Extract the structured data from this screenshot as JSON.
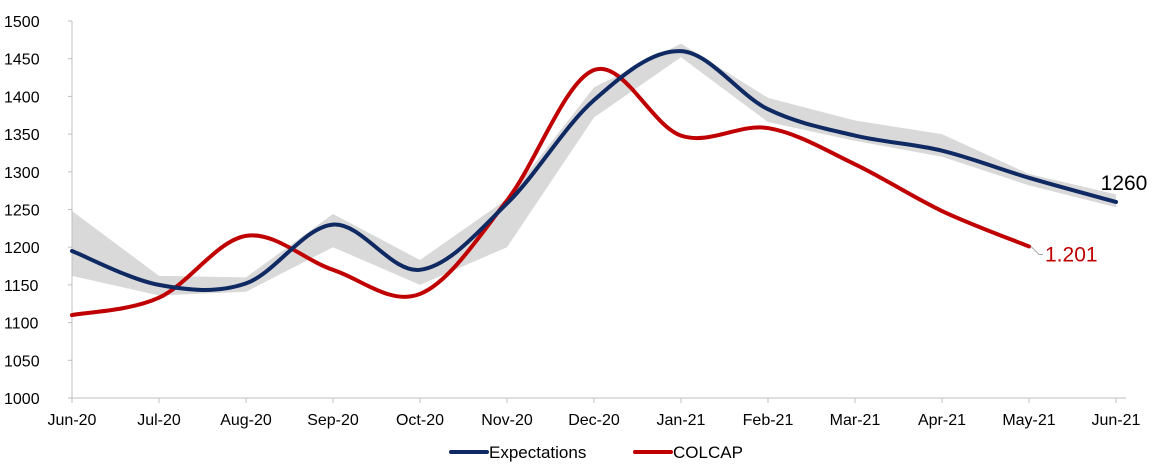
{
  "chart_data": {
    "type": "line",
    "title": "",
    "xlabel": "",
    "ylabel": "",
    "categories": [
      "Jun-20",
      "Jul-20",
      "Aug-20",
      "Sep-20",
      "Oct-20",
      "Nov-20",
      "Dec-20",
      "Jan-21",
      "Feb-21",
      "Mar-21",
      "Apr-21",
      "May-21",
      "Jun-21"
    ],
    "y_ticks": [
      "1000",
      "1050",
      "1100",
      "1150",
      "1200",
      "1250",
      "1300",
      "1350",
      "1400",
      "1450",
      "1500"
    ],
    "ylim": [
      1000,
      1500
    ],
    "grid": false,
    "legend_position": "bottom",
    "series": [
      {
        "name": "Expectations",
        "color": "#0f2a63",
        "values": [
          1195,
          1150,
          1152,
          1230,
          1170,
          1258,
          1395,
          1460,
          1383,
          1348,
          1328,
          1292,
          1260
        ]
      },
      {
        "name": "COLCAP",
        "color": "#c00000",
        "values": [
          1110,
          1133,
          1215,
          1170,
          1138,
          1262,
          1435,
          1348,
          1358,
          1310,
          1248,
          1201,
          null
        ]
      }
    ],
    "range_band": {
      "color": "#d9d9d9",
      "upper": [
        1248,
        1162,
        1160,
        1244,
        1183,
        1264,
        1412,
        1470,
        1398,
        1368,
        1350,
        1297,
        1270
      ],
      "lower": [
        1162,
        1136,
        1141,
        1200,
        1150,
        1200,
        1372,
        1452,
        1366,
        1341,
        1320,
        1282,
        1253
      ]
    },
    "annotations": [
      {
        "series": "Expectations",
        "category": "Jun-21",
        "text": "1260",
        "color": "#000000"
      },
      {
        "series": "COLCAP",
        "category": "May-21",
        "text": "1.201",
        "color": "#c00000"
      }
    ]
  }
}
